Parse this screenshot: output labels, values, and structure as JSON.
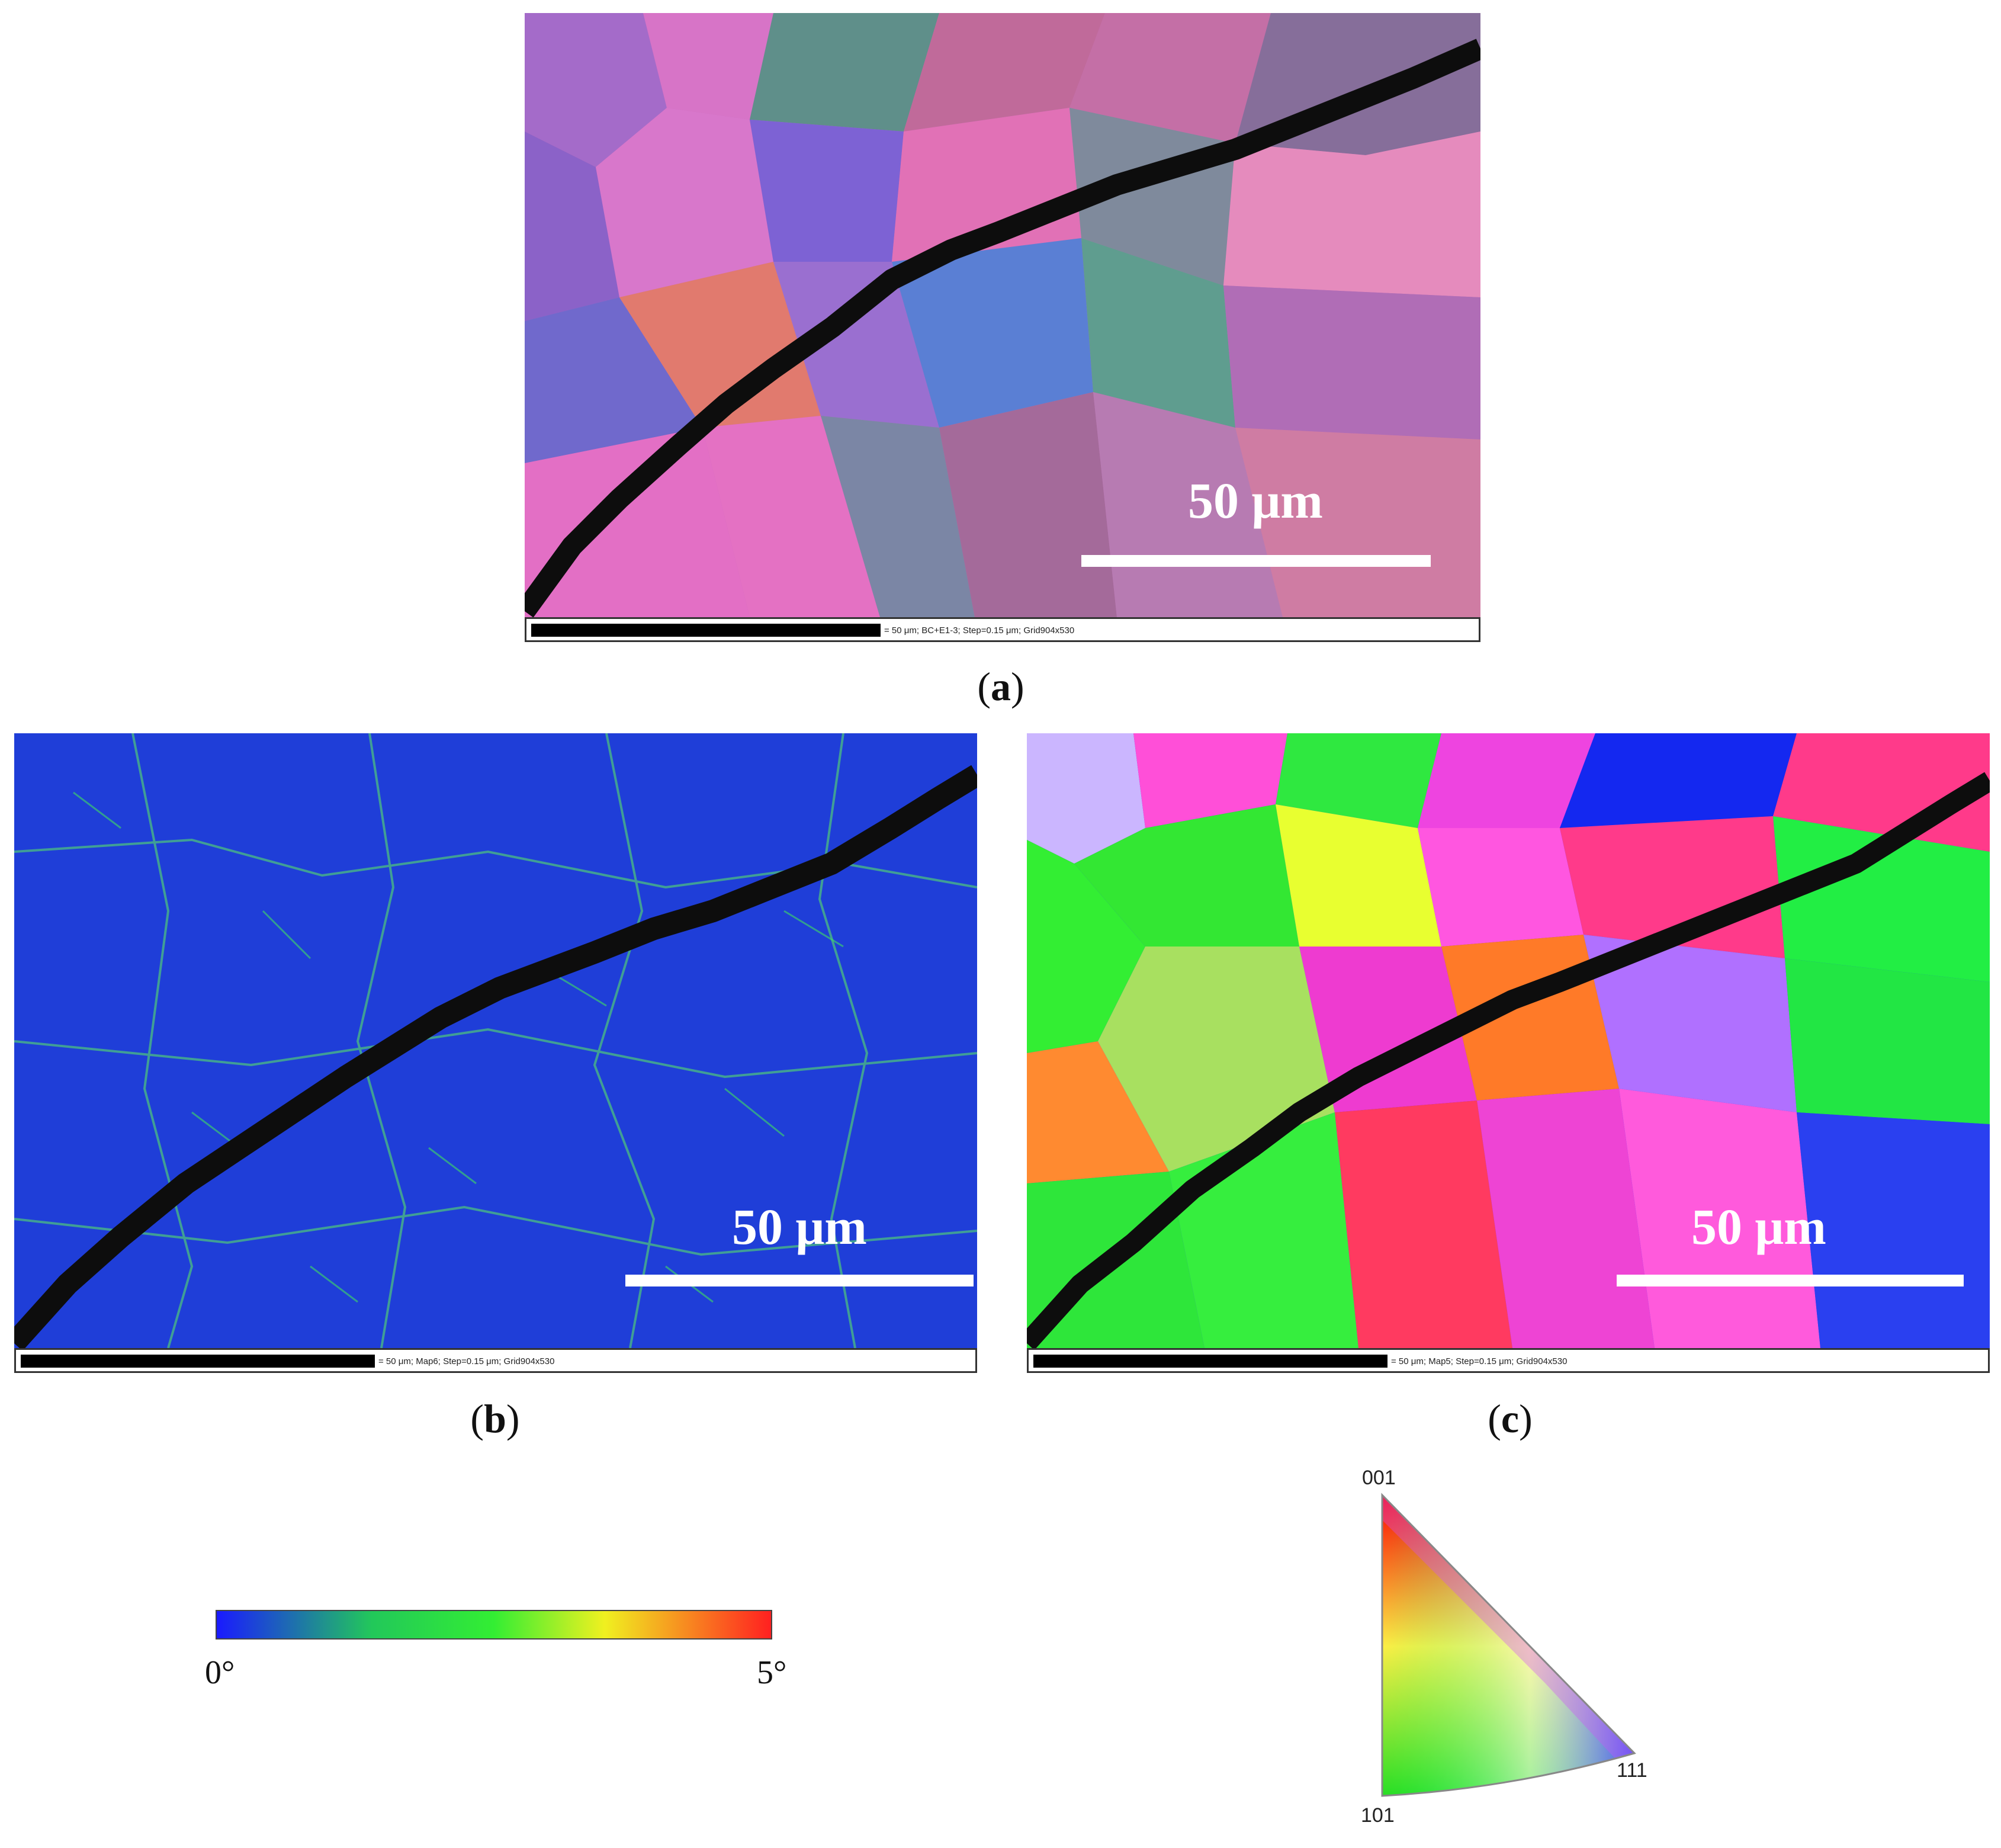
{
  "panels": {
    "a": {
      "scalebar_label": "50 μm",
      "info_text": "= 50 μm; BC+E1-3; Step=0.15 μm; Grid904x530",
      "caption": "a"
    },
    "b": {
      "scalebar_label": "50 μm",
      "info_text": "= 50 μm; Map6; Step=0.15 μm; Grid904x530",
      "caption": "b"
    },
    "c": {
      "scalebar_label": "50 μm",
      "info_text": "= 50 μm; Map5; Step=0.15 μm; Grid904x530",
      "caption": "c"
    }
  },
  "colorbar": {
    "min_label": "0°",
    "max_label": "5°",
    "colors": [
      "#1a1aff",
      "#22c85a",
      "#33ee33",
      "#f0f020",
      "#ff2020"
    ]
  },
  "ipf_key": {
    "top_label": "001",
    "bottom_left_label": "101",
    "bottom_right_label": "111"
  }
}
